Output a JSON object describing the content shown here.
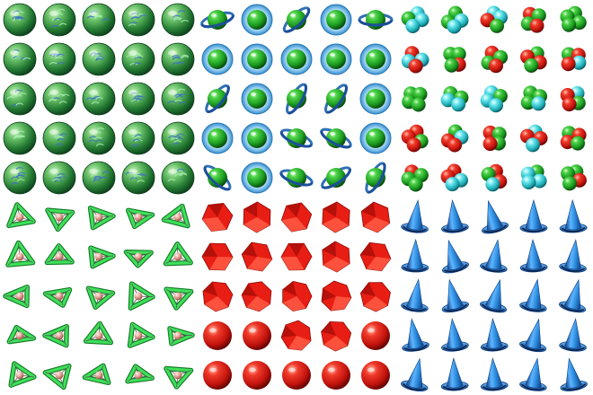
{
  "panels": [
    {
      "name": "green-textured-spheres",
      "kind": "textured-sphere",
      "seed": 1
    },
    {
      "name": "green-spheres-with-blue-rings",
      "kind": "ringed-sphere",
      "seed": 2
    },
    {
      "name": "atom-clusters-red-green-cyan",
      "kind": "atom-cluster",
      "seed": 3
    },
    {
      "name": "green-triangle-frames",
      "kind": "triangle-frame",
      "seed": 4
    },
    {
      "name": "red-polyhedra",
      "kind": "red-polyhedron",
      "seed": 5
    },
    {
      "name": "blue-cones-with-discs",
      "kind": "blue-cone",
      "seed": 6
    }
  ],
  "grid": {
    "rows": 5,
    "cols": 5
  },
  "colors": {
    "background": "#ffffff",
    "green": "#1fa81f",
    "green_dark": "#0b5e12",
    "blue_ring": "#2f6fb4",
    "blue_ring_light": "#8fd0ee",
    "atom_red": "#d81b1b",
    "atom_green": "#24b324",
    "atom_cyan": "#3ad4dc",
    "triangle": "#3fe05a",
    "triangle_dark": "#147a28",
    "pink_ball": "#e8a59a",
    "poly_red": "#e81e14",
    "poly_red_dark": "#8c0a06",
    "cone_blue": "#2f8fe0",
    "cone_blue_dark": "#0c3f86"
  }
}
